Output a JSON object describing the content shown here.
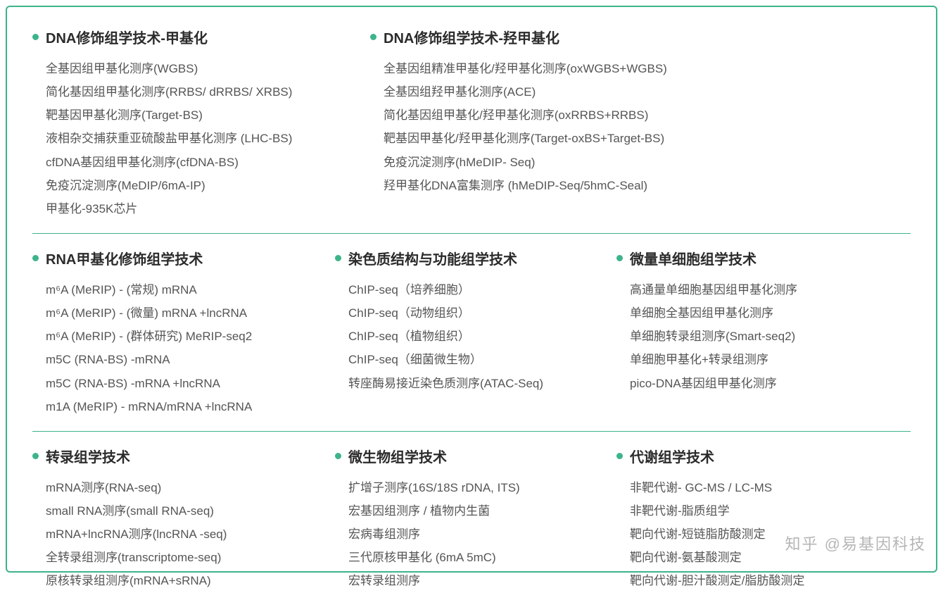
{
  "colors": {
    "border": "#3db489",
    "bullet": "#3db489",
    "title": "#2b2b2b",
    "item": "#555555",
    "background": "#ffffff"
  },
  "typography": {
    "title_fontsize": 20,
    "title_weight": 700,
    "item_fontsize": 17,
    "item_lineheight": 1.95
  },
  "row1": {
    "left": {
      "title": "DNA修饰组学技术-甲基化",
      "items": [
        "全基因组甲基化测序(WGBS)",
        "简化基因组甲基化测序(RRBS/ dRRBS/ XRBS)",
        "靶基因甲基化测序(Target-BS)",
        "液相杂交捕获重亚硫酸盐甲基化测序 (LHC-BS)",
        "cfDNA基因组甲基化测序(cfDNA-BS)",
        "免疫沉淀测序(MeDIP/6mA-IP)",
        "甲基化-935K芯片"
      ]
    },
    "right": {
      "title": "DNA修饰组学技术-羟甲基化",
      "items": [
        "全基因组精准甲基化/羟甲基化测序(oxWGBS+WGBS)",
        "全基因组羟甲基化测序(ACE)",
        "简化基因组甲基化/羟甲基化测序(oxRRBS+RRBS)",
        "靶基因甲基化/羟甲基化测序(Target-oxBS+Target-BS)",
        "免疫沉淀测序(hMeDIP- Seq)",
        "羟甲基化DNA富集测序 (hMeDIP-Seq/5hmC-Seal)"
      ]
    }
  },
  "row2": {
    "left": {
      "title": "RNA甲基化修饰组学技术",
      "items": [
        "m⁶A (MeRIP) - (常规) mRNA",
        "m⁶A (MeRIP) - (微量) mRNA +lncRNA",
        "m⁶A (MeRIP) - (群体研究) MeRIP-seq2",
        "m5C (RNA-BS) -mRNA",
        "m5C (RNA-BS) -mRNA +lncRNA",
        "m1A (MeRIP) - mRNA/mRNA +lncRNA"
      ]
    },
    "mid": {
      "title": "染色质结构与功能组学技术",
      "items": [
        "ChIP-seq（培养细胞）",
        "ChIP-seq（动物组织）",
        "ChIP-seq（植物组织）",
        "ChIP-seq（细菌微生物）",
        "转座酶易接近染色质测序(ATAC-Seq)"
      ]
    },
    "right": {
      "title": "微量单细胞组学技术",
      "items": [
        "高通量单细胞基因组甲基化测序",
        "单细胞全基因组甲基化测序",
        "单细胞转录组测序(Smart-seq2)",
        "单细胞甲基化+转录组测序",
        "pico-DNA基因组甲基化测序"
      ]
    }
  },
  "row3": {
    "left": {
      "title": "转录组学技术",
      "items": [
        "mRNA测序(RNA-seq)",
        "small RNA测序(small RNA-seq)",
        "mRNA+lncRNA测序(lncRNA -seq)",
        "全转录组测序(transcriptome-seq)",
        "原核转录组测序(mRNA+sRNA)"
      ]
    },
    "mid": {
      "title": "微生物组学技术",
      "items": [
        "扩增子测序(16S/18S rDNA, ITS)",
        "宏基因组测序 / 植物内生菌",
        "宏病毒组测序",
        "三代原核甲基化 (6mA 5mC)",
        "宏转录组测序"
      ]
    },
    "right": {
      "title": "代谢组学技术",
      "items": [
        "非靶代谢- GC-MS / LC-MS",
        "非靶代谢-脂质组学",
        "靶向代谢-短链脂肪酸测定",
        "靶向代谢-氨基酸测定",
        "靶向代谢-胆汁酸测定/脂肪酸测定"
      ]
    }
  },
  "watermark": "知乎 @易基因科技"
}
